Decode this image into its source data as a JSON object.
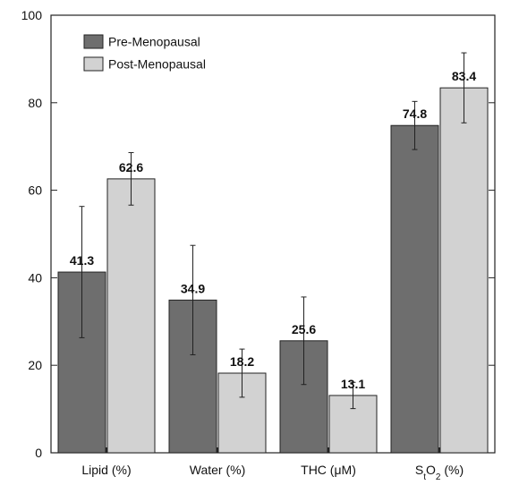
{
  "chart_data": {
    "type": "bar",
    "title": "",
    "xlabel": "",
    "ylabel": "",
    "ylim": [
      0,
      100
    ],
    "yticks": [
      0,
      20,
      40,
      60,
      80,
      100
    ],
    "grid": false,
    "legend_position": "top-left",
    "categories": [
      "Lipid (%)",
      "Water (%)",
      "THC (μM)",
      "S_tO_2 (%)"
    ],
    "series": [
      {
        "name": "Pre-Menopausal",
        "color": "#6e6e6e",
        "values": [
          41.3,
          34.9,
          25.6,
          74.8
        ],
        "labels": [
          "41.3",
          "34.9",
          "25.6",
          "74.8"
        ],
        "error": [
          15,
          12.5,
          10,
          5.5
        ]
      },
      {
        "name": "Post-Menopausal",
        "color": "#d2d2d2",
        "values": [
          62.6,
          18.2,
          13.1,
          83.4
        ],
        "labels": [
          "62.6",
          "18.2",
          "13.1",
          "83.4"
        ],
        "error": [
          6,
          5.5,
          3,
          8
        ]
      }
    ]
  }
}
